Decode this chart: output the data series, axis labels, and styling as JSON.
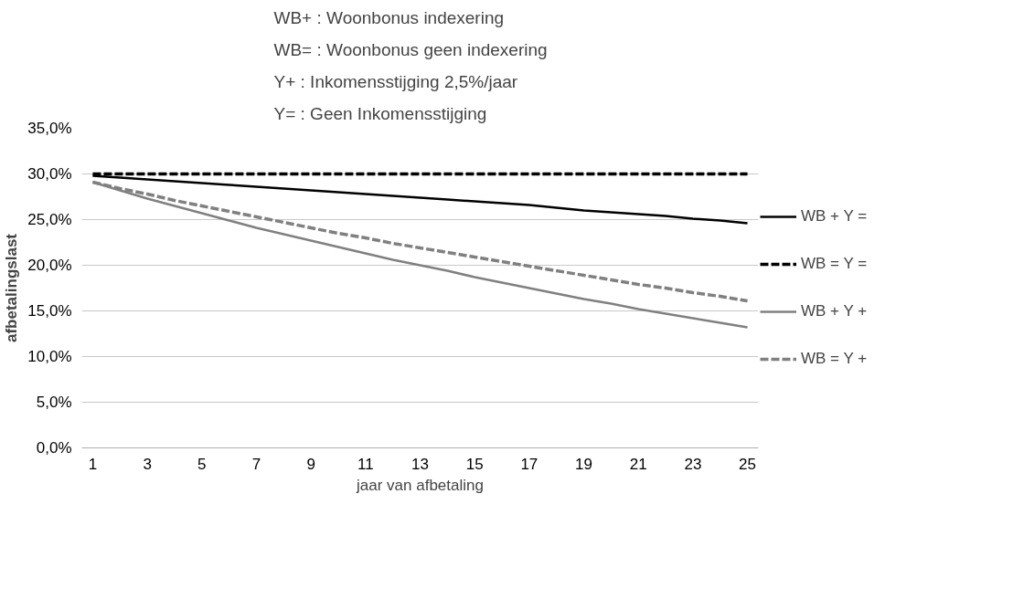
{
  "chart_data": {
    "type": "line",
    "xlabel": "jaar van afbetaling",
    "ylabel": "afbetalingslast",
    "annotations": [
      "WB+ : Woonbonus indexering",
      "WB= : Woonbonus geen indexering",
      "Y+    : Inkomensstijging 2,5%/jaar",
      "Y=    : Geen Inkomensstijging"
    ],
    "x": [
      1,
      2,
      3,
      4,
      5,
      6,
      7,
      8,
      9,
      10,
      11,
      12,
      13,
      14,
      15,
      16,
      17,
      18,
      19,
      20,
      21,
      22,
      23,
      24,
      25
    ],
    "xlim": [
      0.6,
      25.4
    ],
    "xticks": [
      1,
      3,
      5,
      7,
      9,
      11,
      13,
      15,
      17,
      19,
      21,
      23,
      25
    ],
    "ylim": [
      0,
      35
    ],
    "yticks": [
      {
        "value": 0,
        "label": "0,0%"
      },
      {
        "value": 5,
        "label": "5,0%"
      },
      {
        "value": 10,
        "label": "10,0%"
      },
      {
        "value": 15,
        "label": "15,0%"
      },
      {
        "value": 20,
        "label": "20,0%"
      },
      {
        "value": 25,
        "label": "25,0%"
      },
      {
        "value": 30,
        "label": "30,0%"
      },
      {
        "value": 35,
        "label": "35,0%"
      }
    ],
    "grid": "y",
    "legend": "right",
    "marker": "none",
    "series": [
      {
        "name": "WB + Y =",
        "color": "#000000",
        "line_style": "solid",
        "values": [
          29.8,
          29.6,
          29.4,
          29.2,
          29.0,
          28.8,
          28.6,
          28.4,
          28.2,
          28.0,
          27.8,
          27.6,
          27.4,
          27.2,
          27.0,
          26.8,
          26.6,
          26.3,
          26.0,
          25.8,
          25.6,
          25.4,
          25.1,
          24.9,
          24.6
        ]
      },
      {
        "name": "WB = Y =",
        "color": "#000000",
        "line_style": "dashed",
        "values": [
          30.0,
          30.0,
          30.0,
          30.0,
          30.0,
          30.0,
          30.0,
          30.0,
          30.0,
          30.0,
          30.0,
          30.0,
          30.0,
          30.0,
          30.0,
          30.0,
          30.0,
          30.0,
          30.0,
          30.0,
          30.0,
          30.0,
          30.0,
          30.0,
          30.0
        ]
      },
      {
        "name": "WB + Y +",
        "color": "#808080",
        "line_style": "solid",
        "values": [
          29.1,
          28.2,
          27.3,
          26.5,
          25.7,
          24.9,
          24.1,
          23.4,
          22.7,
          22.0,
          21.3,
          20.6,
          20.0,
          19.4,
          18.7,
          18.1,
          17.5,
          16.9,
          16.3,
          15.8,
          15.2,
          14.7,
          14.2,
          13.7,
          13.2
        ]
      },
      {
        "name": "WB = Y +",
        "color": "#808080",
        "line_style": "dashed",
        "values": [
          29.1,
          28.4,
          27.8,
          27.1,
          26.5,
          25.9,
          25.3,
          24.7,
          24.1,
          23.5,
          23.0,
          22.4,
          21.9,
          21.4,
          20.9,
          20.4,
          19.9,
          19.4,
          18.9,
          18.4,
          17.9,
          17.5,
          17.0,
          16.6,
          16.1
        ]
      }
    ]
  }
}
